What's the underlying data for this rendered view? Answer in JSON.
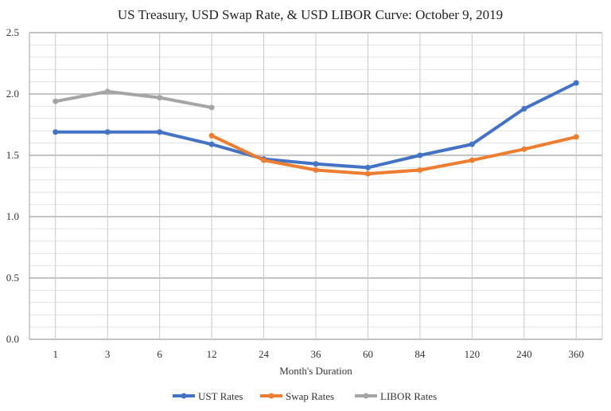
{
  "chart_data": {
    "type": "line",
    "title": "US Treasury, USD Swap Rate, & USD LIBOR Curve: October 9, 2019",
    "xlabel": "Month's Duration",
    "ylabel": "",
    "categories": [
      "1",
      "3",
      "6",
      "12",
      "24",
      "36",
      "60",
      "84",
      "120",
      "240",
      "360"
    ],
    "ylim": [
      0,
      2.5
    ],
    "yticks": [
      "0.0",
      "0.5",
      "1.0",
      "1.5",
      "2.0",
      "2.5"
    ],
    "grid": true,
    "legend": "bottom",
    "series": [
      {
        "name": "UST Rates",
        "color": "#4472c4",
        "values": [
          1.69,
          1.69,
          1.69,
          1.59,
          1.47,
          1.43,
          1.4,
          1.5,
          1.59,
          1.88,
          2.09
        ]
      },
      {
        "name": "Swap Rates",
        "color": "#ed7d31",
        "values": [
          null,
          null,
          null,
          1.66,
          1.46,
          1.38,
          1.35,
          1.38,
          1.46,
          1.55,
          1.65
        ]
      },
      {
        "name": "LIBOR Rates",
        "color": "#a5a5a5",
        "values": [
          1.94,
          2.02,
          1.97,
          1.89,
          null,
          null,
          null,
          null,
          null,
          null,
          null
        ]
      }
    ]
  }
}
